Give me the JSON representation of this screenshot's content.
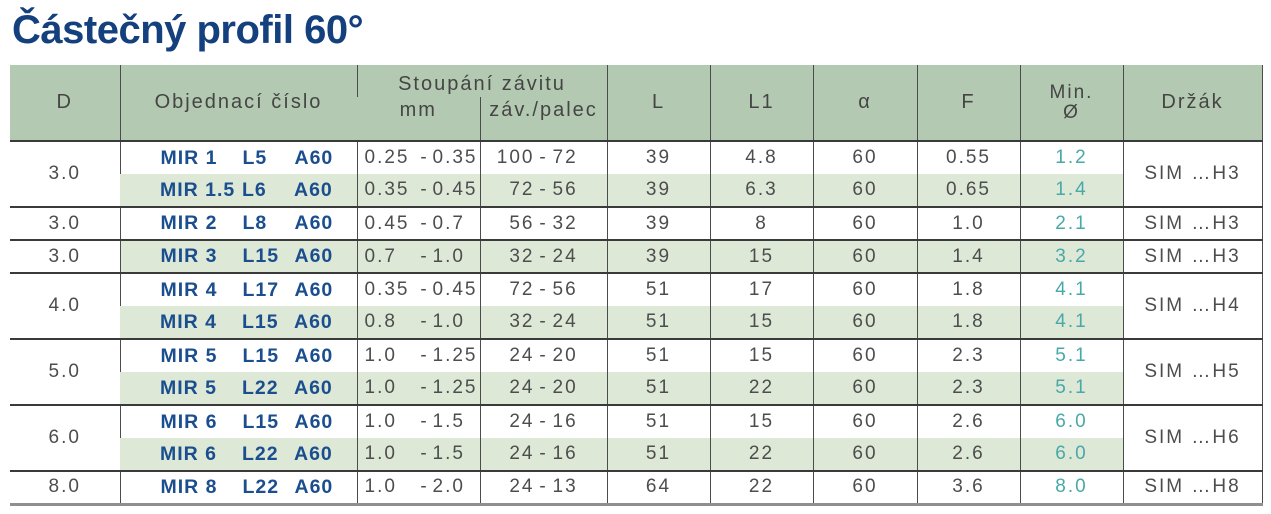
{
  "page_title": "Částečný profil 60°",
  "colors": {
    "title": "#14407e",
    "header_bg": "#b3c9b1",
    "row_tint": "#dde8d7",
    "order_number": "#1a4e8e",
    "min_diameter": "#49a8a8",
    "body_text": "#4d4d4d",
    "group_line": "#3a3a3a",
    "bottom_line": "#8f8f8f"
  },
  "table": {
    "headers": {
      "d": "D",
      "order": "Objednací číslo",
      "pitch_group": "Stoupání závitu",
      "pitch_mm": "mm",
      "pitch_tpi": "záv./palec",
      "l": "L",
      "l1": "L1",
      "alpha": "α",
      "f": "F",
      "min_line1": "Min.",
      "min_line2": "Ø",
      "holder": "Držák"
    },
    "groups": [
      {
        "d": "3.0",
        "holder": "SIM …H3",
        "rows": [
          {
            "order": [
              "MIR 1",
              "L5",
              "A60"
            ],
            "mm": [
              "0.25",
              "0.35"
            ],
            "tpi": [
              "100",
              "72"
            ],
            "l": "39",
            "l1": "4.8",
            "alpha": "60",
            "f": "0.55",
            "min_d": "1.2"
          },
          {
            "order": [
              "MIR 1.5",
              "L6",
              "A60"
            ],
            "mm": [
              "0.35",
              "0.45"
            ],
            "tpi": [
              "72",
              "56"
            ],
            "l": "39",
            "l1": "6.3",
            "alpha": "60",
            "f": "0.65",
            "min_d": "1.4"
          }
        ]
      },
      {
        "d": "3.0",
        "holder": "SIM …H3",
        "rows": [
          {
            "order": [
              "MIR 2",
              "L8",
              "A60"
            ],
            "mm": [
              "0.45",
              "0.7"
            ],
            "tpi": [
              "56",
              "32"
            ],
            "l": "39",
            "l1": "8",
            "alpha": "60",
            "f": "1.0",
            "min_d": "2.1"
          }
        ]
      },
      {
        "d": "3.0",
        "holder": "SIM …H3",
        "rows": [
          {
            "order": [
              "MIR 3",
              "L15",
              "A60"
            ],
            "mm": [
              "0.7",
              "1.0"
            ],
            "tpi": [
              "32",
              "24"
            ],
            "l": "39",
            "l1": "15",
            "alpha": "60",
            "f": "1.4",
            "min_d": "3.2"
          }
        ]
      },
      {
        "d": "4.0",
        "holder": "SIM …H4",
        "rows": [
          {
            "order": [
              "MIR 4",
              "L17",
              "A60"
            ],
            "mm": [
              "0.35",
              "0.45"
            ],
            "tpi": [
              "72",
              "56"
            ],
            "l": "51",
            "l1": "17",
            "alpha": "60",
            "f": "1.8",
            "min_d": "4.1"
          },
          {
            "order": [
              "MIR 4",
              "L15",
              "A60"
            ],
            "mm": [
              "0.8",
              "1.0"
            ],
            "tpi": [
              "32",
              "24"
            ],
            "l": "51",
            "l1": "15",
            "alpha": "60",
            "f": "1.8",
            "min_d": "4.1"
          }
        ]
      },
      {
        "d": "5.0",
        "holder": "SIM …H5",
        "rows": [
          {
            "order": [
              "MIR 5",
              "L15",
              "A60"
            ],
            "mm": [
              "1.0",
              "1.25"
            ],
            "tpi": [
              "24",
              "20"
            ],
            "l": "51",
            "l1": "15",
            "alpha": "60",
            "f": "2.3",
            "min_d": "5.1"
          },
          {
            "order": [
              "MIR 5",
              "L22",
              "A60"
            ],
            "mm": [
              "1.0",
              "1.25"
            ],
            "tpi": [
              "24",
              "20"
            ],
            "l": "51",
            "l1": "22",
            "alpha": "60",
            "f": "2.3",
            "min_d": "5.1"
          }
        ]
      },
      {
        "d": "6.0",
        "holder": "SIM …H6",
        "rows": [
          {
            "order": [
              "MIR 6",
              "L15",
              "A60"
            ],
            "mm": [
              "1.0",
              "1.5"
            ],
            "tpi": [
              "24",
              "16"
            ],
            "l": "51",
            "l1": "15",
            "alpha": "60",
            "f": "2.6",
            "min_d": "6.0"
          },
          {
            "order": [
              "MIR 6",
              "L22",
              "A60"
            ],
            "mm": [
              "1.0",
              "1.5"
            ],
            "tpi": [
              "24",
              "16"
            ],
            "l": "51",
            "l1": "22",
            "alpha": "60",
            "f": "2.6",
            "min_d": "6.0"
          }
        ]
      },
      {
        "d": "8.0",
        "holder": "SIM …H8",
        "rows": [
          {
            "order": [
              "MIR 8",
              "L22",
              "A60"
            ],
            "mm": [
              "1.0",
              "2.0"
            ],
            "tpi": [
              "24",
              "13"
            ],
            "l": "64",
            "l1": "22",
            "alpha": "60",
            "f": "3.6",
            "min_d": "8.0"
          }
        ]
      }
    ]
  }
}
